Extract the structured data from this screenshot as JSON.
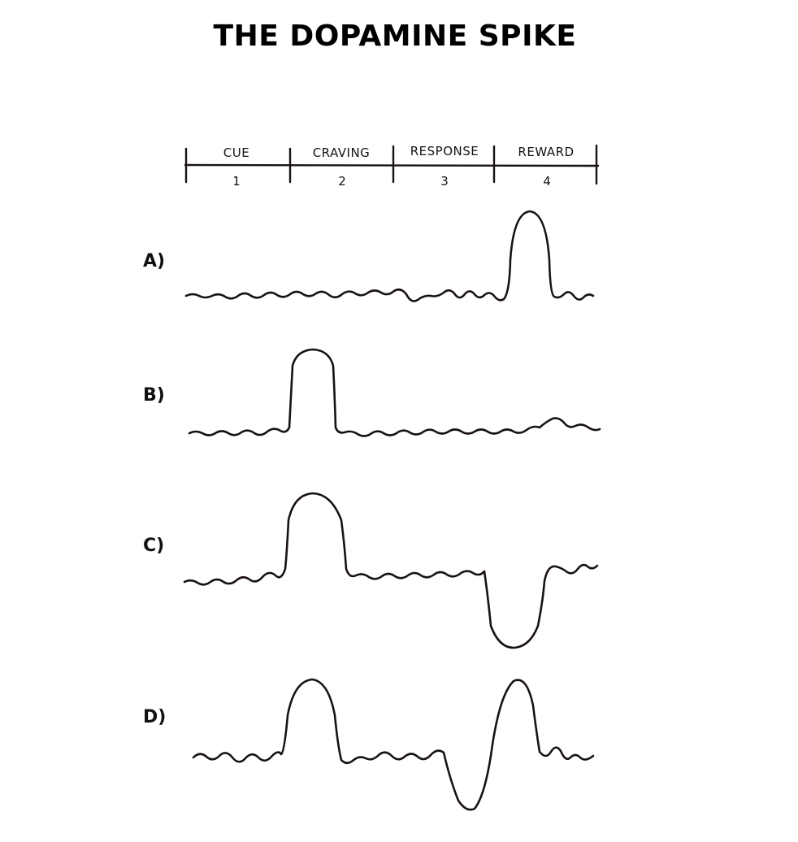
{
  "title": "THE DOPAMINE SPIKE",
  "stages": [
    {
      "label": "CUE",
      "number": "1"
    },
    {
      "label": "CRAVING",
      "number": "2"
    },
    {
      "label": "RESPONSE",
      "number": "3"
    },
    {
      "label": "REWARD",
      "number": "4"
    }
  ],
  "rows": [
    {
      "label": "A)"
    },
    {
      "label": "B)"
    },
    {
      "label": "C)"
    },
    {
      "label": "D)"
    }
  ],
  "colors": {
    "ink": "#1a1212",
    "background": "#ffffff"
  }
}
